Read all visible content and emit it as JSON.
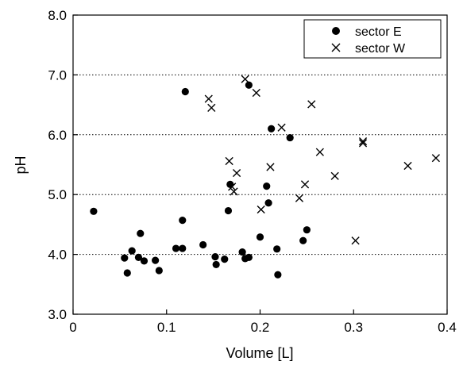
{
  "chart_data": {
    "type": "scatter",
    "title": "",
    "xlabel": "Volume [L]",
    "ylabel": "pH",
    "xlim": [
      0,
      0.4
    ],
    "ylim": [
      3.0,
      8.0
    ],
    "x_ticks": [
      0,
      0.1,
      0.2,
      0.3,
      0.4
    ],
    "x_tick_labels": [
      "0",
      "0.1",
      "0.2",
      "0.3",
      "0.4"
    ],
    "y_ticks": [
      3.0,
      4.0,
      5.0,
      6.0,
      7.0,
      8.0
    ],
    "y_tick_labels": [
      "3.0",
      "4.0",
      "5.0",
      "6.0",
      "7.0",
      "8.0"
    ],
    "grid": "horizontal dotted",
    "legend_position": "top-right",
    "series": [
      {
        "name": "sector E",
        "marker": "filled-circle",
        "color": "#000000",
        "points": [
          [
            0.022,
            4.72
          ],
          [
            0.055,
            3.94
          ],
          [
            0.058,
            3.69
          ],
          [
            0.063,
            4.06
          ],
          [
            0.07,
            3.95
          ],
          [
            0.072,
            4.35
          ],
          [
            0.076,
            3.89
          ],
          [
            0.088,
            3.9
          ],
          [
            0.092,
            3.73
          ],
          [
            0.11,
            4.1
          ],
          [
            0.117,
            4.57
          ],
          [
            0.117,
            4.1
          ],
          [
            0.12,
            6.72
          ],
          [
            0.139,
            4.16
          ],
          [
            0.152,
            3.96
          ],
          [
            0.153,
            3.83
          ],
          [
            0.162,
            3.92
          ],
          [
            0.166,
            4.73
          ],
          [
            0.168,
            5.17
          ],
          [
            0.181,
            4.04
          ],
          [
            0.184,
            3.93
          ],
          [
            0.188,
            3.95
          ],
          [
            0.188,
            6.83
          ],
          [
            0.2,
            4.29
          ],
          [
            0.207,
            5.14
          ],
          [
            0.209,
            4.86
          ],
          [
            0.212,
            6.1
          ],
          [
            0.218,
            4.09
          ],
          [
            0.219,
            3.66
          ],
          [
            0.232,
            5.95
          ],
          [
            0.246,
            4.23
          ],
          [
            0.25,
            4.41
          ]
        ]
      },
      {
        "name": "sector W",
        "marker": "x-cross",
        "color": "#000000",
        "points": [
          [
            0.145,
            6.6
          ],
          [
            0.148,
            6.45
          ],
          [
            0.167,
            5.56
          ],
          [
            0.17,
            5.13
          ],
          [
            0.172,
            5.05
          ],
          [
            0.175,
            5.36
          ],
          [
            0.184,
            6.93
          ],
          [
            0.196,
            6.7
          ],
          [
            0.201,
            4.75
          ],
          [
            0.211,
            5.46
          ],
          [
            0.223,
            6.12
          ],
          [
            0.242,
            4.94
          ],
          [
            0.248,
            5.17
          ],
          [
            0.255,
            6.51
          ],
          [
            0.264,
            5.71
          ],
          [
            0.28,
            5.31
          ],
          [
            0.302,
            4.23
          ],
          [
            0.31,
            5.89
          ],
          [
            0.31,
            5.86
          ],
          [
            0.358,
            5.48
          ],
          [
            0.388,
            5.61
          ]
        ]
      }
    ]
  }
}
